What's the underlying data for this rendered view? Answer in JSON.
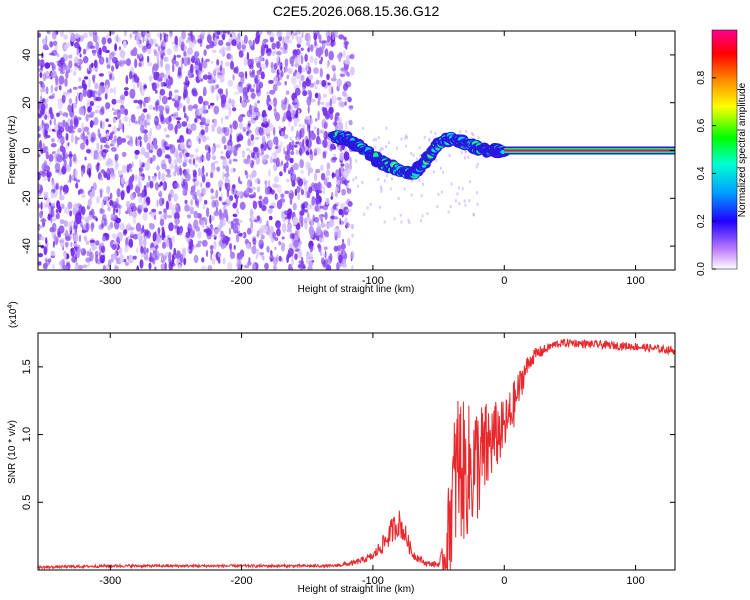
{
  "title": "C2E5.2026.068.15.36.G12",
  "chart_data": [
    {
      "type": "heatmap",
      "name": "spectrogram",
      "xlabel": "Height of straight line (km)",
      "ylabel": "Frequency (Hz)",
      "xlim": [
        -355,
        130
      ],
      "ylim": [
        -50,
        50
      ],
      "xticks": [
        "-300",
        "-200",
        "-100",
        "0",
        "100"
      ],
      "xtick_values": [
        -300,
        -200,
        -100,
        0,
        100
      ],
      "yticks": [
        "40",
        "20",
        "0",
        "-20",
        "-40"
      ],
      "ytick_values": [
        40,
        20,
        0,
        -20,
        -40
      ],
      "colorbar": {
        "label": "Normalized spectral amplitude",
        "range": [
          0,
          1
        ],
        "ticks": [
          "0.0",
          "0.2",
          "0.4",
          "0.6",
          "0.8"
        ],
        "tick_values": [
          0.0,
          0.2,
          0.4,
          0.6,
          0.8
        ],
        "colors": [
          "#ffffff",
          "#a050ff",
          "#2000ff",
          "#00c0ff",
          "#00ff40",
          "#ffff00",
          "#ff8000",
          "#ff0000",
          "#ff0080"
        ]
      },
      "noise_region_x": [
        -355,
        -120
      ],
      "signal_track": [
        {
          "x": -130,
          "y": 6
        },
        {
          "x": -120,
          "y": 5
        },
        {
          "x": -110,
          "y": 2
        },
        {
          "x": -100,
          "y": -3
        },
        {
          "x": -90,
          "y": -6
        },
        {
          "x": -80,
          "y": -8
        },
        {
          "x": -70,
          "y": -10
        },
        {
          "x": -60,
          "y": -4
        },
        {
          "x": -50,
          "y": 3
        },
        {
          "x": -40,
          "y": 5
        },
        {
          "x": -30,
          "y": 3
        },
        {
          "x": -20,
          "y": 1
        },
        {
          "x": -10,
          "y": 0
        },
        {
          "x": 0,
          "y": 0
        },
        {
          "x": 130,
          "y": 0
        }
      ]
    },
    {
      "type": "line",
      "name": "snr",
      "xlabel": "Height of straight line (km)",
      "ylabel": "SNR (10 * v/v)",
      "y_multiplier": "(x10",
      "y_multiplier_exp": "4",
      "y_multiplier_close": ")",
      "xlim": [
        -355,
        130
      ],
      "ylim": [
        0,
        1.75
      ],
      "xticks": [
        "-300",
        "-200",
        "-100",
        "0",
        "100"
      ],
      "xtick_values": [
        -300,
        -200,
        -100,
        0,
        100
      ],
      "yticks": [
        "0.5",
        "1.0",
        "1.5"
      ],
      "ytick_values": [
        0.5,
        1.0,
        1.5
      ],
      "color": "#e8282c",
      "series": [
        {
          "x": [
            -355,
            -300,
            -200,
            -130,
            -115,
            -100,
            -90,
            -85,
            -80,
            -75,
            -70,
            -60,
            -50,
            -45,
            -40,
            -35,
            -30,
            -25,
            -20,
            -15,
            -10,
            -5,
            0,
            5,
            10,
            15,
            20,
            25,
            30,
            35,
            40,
            50,
            60,
            80,
            100,
            120,
            130
          ],
          "values": [
            0.02,
            0.03,
            0.03,
            0.03,
            0.05,
            0.1,
            0.22,
            0.3,
            0.35,
            0.25,
            0.12,
            0.05,
            0.04,
            0.1,
            0.5,
            0.8,
            0.7,
            0.75,
            0.8,
            0.85,
            0.95,
            1.0,
            1.05,
            1.15,
            1.3,
            1.45,
            1.55,
            1.6,
            1.62,
            1.65,
            1.67,
            1.68,
            1.67,
            1.66,
            1.65,
            1.63,
            1.62
          ],
          "amplitude": [
            0.01,
            0.01,
            0.01,
            0.01,
            0.02,
            0.03,
            0.08,
            0.1,
            0.1,
            0.08,
            0.04,
            0.02,
            0.02,
            0.15,
            0.5,
            0.6,
            0.5,
            0.5,
            0.45,
            0.4,
            0.3,
            0.25,
            0.2,
            0.2,
            0.15,
            0.1,
            0.06,
            0.05,
            0.04,
            0.03,
            0.03,
            0.03,
            0.03,
            0.03,
            0.03,
            0.03,
            0.03
          ]
        }
      ]
    }
  ]
}
